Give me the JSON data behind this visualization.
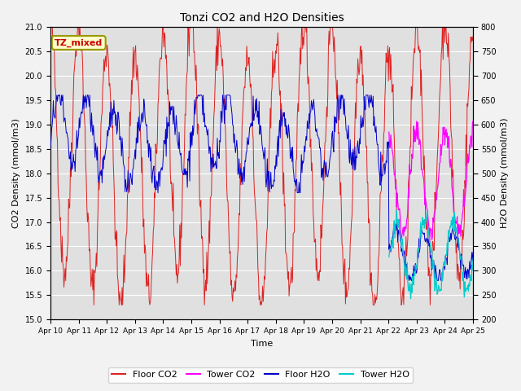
{
  "title": "Tonzi CO2 and H2O Densities",
  "xlabel": "Time",
  "ylabel_left": "CO2 Density (mmol/m3)",
  "ylabel_right": "H2O Density (mmol/m3)",
  "ylim_left": [
    15.0,
    21.0
  ],
  "ylim_right": [
    200,
    800
  ],
  "yticks_left": [
    15.0,
    15.5,
    16.0,
    16.5,
    17.0,
    17.5,
    18.0,
    18.5,
    19.0,
    19.5,
    20.0,
    20.5,
    21.0
  ],
  "yticks_right": [
    200,
    250,
    300,
    350,
    400,
    450,
    500,
    550,
    600,
    650,
    700,
    750,
    800
  ],
  "xtick_labels": [
    "Apr 10",
    "Apr 11",
    "Apr 12",
    "Apr 13",
    "Apr 14",
    "Apr 15",
    "Apr 16",
    "Apr 17",
    "Apr 18",
    "Apr 19",
    "Apr 20",
    "Apr 21",
    "Apr 22",
    "Apr 23",
    "Apr 24",
    "Apr 25"
  ],
  "annotation_text": "TZ_mixed",
  "annotation_color": "#cc0000",
  "annotation_bg": "#ffffcc",
  "annotation_edgecolor": "#999900",
  "floor_co2_color": "#dd2222",
  "tower_co2_color": "#ff00ff",
  "floor_h2o_color": "#0000cc",
  "tower_h2o_color": "#00cccc",
  "legend_labels": [
    "Floor CO2",
    "Tower CO2",
    "Floor H2O",
    "Tower H2O"
  ],
  "plot_bg_color": "#e0e0e0",
  "fig_bg_color": "#f2f2f2",
  "grid_color": "#ffffff",
  "n_days": 15,
  "n_per_day": 48,
  "seed": 42
}
